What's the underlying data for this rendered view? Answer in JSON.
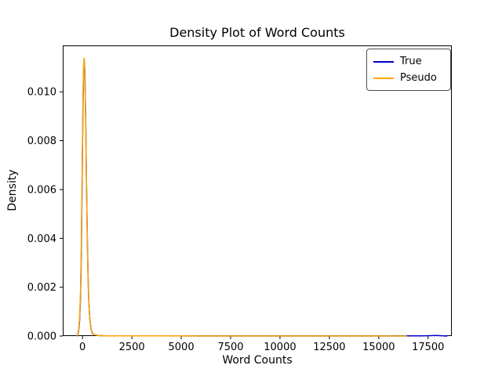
{
  "chart_data": {
    "type": "line",
    "title": "Density Plot of Word Counts",
    "xlabel": "Word Counts",
    "ylabel": "Density",
    "xlim": [
      -1000,
      18700
    ],
    "ylim": [
      0,
      0.0119
    ],
    "xticks": [
      0,
      2500,
      5000,
      7500,
      10000,
      12500,
      15000,
      17500
    ],
    "xtick_labels": [
      "0",
      "2500",
      "5000",
      "7500",
      "10000",
      "12500",
      "15000",
      "17500"
    ],
    "yticks": [
      0.0,
      0.002,
      0.004,
      0.006,
      0.008,
      0.01
    ],
    "ytick_labels": [
      "0.000",
      "0.002",
      "0.004",
      "0.006",
      "0.008",
      "0.010"
    ],
    "grid": false,
    "legend": {
      "position": "upper right",
      "entries": [
        "True",
        "Pseudo"
      ]
    },
    "series": [
      {
        "name": "True",
        "color": "#0000cd",
        "points": [
          [
            -260,
            0
          ],
          [
            -200,
            0.0002
          ],
          [
            -150,
            0.0006
          ],
          [
            -100,
            0.0016
          ],
          [
            -60,
            0.0034
          ],
          [
            -20,
            0.0062
          ],
          [
            20,
            0.0092
          ],
          [
            60,
            0.011
          ],
          [
            90,
            0.0113
          ],
          [
            120,
            0.0108
          ],
          [
            160,
            0.009
          ],
          [
            200,
            0.0064
          ],
          [
            240,
            0.0042
          ],
          [
            280,
            0.0025
          ],
          [
            320,
            0.0014
          ],
          [
            370,
            0.0007
          ],
          [
            430,
            0.0003
          ],
          [
            500,
            0.00012
          ],
          [
            600,
            5e-05
          ],
          [
            800,
            2e-05
          ],
          [
            1200,
            1e-05
          ],
          [
            2000,
            8e-06
          ],
          [
            4000,
            6e-06
          ],
          [
            8000,
            5e-06
          ],
          [
            12000,
            5e-06
          ],
          [
            15000,
            5e-06
          ],
          [
            16500,
            6e-06
          ],
          [
            17200,
            1e-05
          ],
          [
            17600,
            1.8e-05
          ],
          [
            17900,
            2.2e-05
          ],
          [
            18200,
            1.2e-05
          ],
          [
            18450,
            0
          ]
        ]
      },
      {
        "name": "Pseudo",
        "color": "#ffa500",
        "points": [
          [
            -260,
            0
          ],
          [
            -200,
            0.00025
          ],
          [
            -150,
            0.0007
          ],
          [
            -100,
            0.0018
          ],
          [
            -60,
            0.0038
          ],
          [
            -20,
            0.0066
          ],
          [
            20,
            0.0096
          ],
          [
            55,
            0.0111
          ],
          [
            80,
            0.01138
          ],
          [
            110,
            0.011
          ],
          [
            140,
            0.0098
          ],
          [
            180,
            0.0076
          ],
          [
            220,
            0.0052
          ],
          [
            260,
            0.0032
          ],
          [
            300,
            0.0018
          ],
          [
            350,
            0.0009
          ],
          [
            410,
            0.0004
          ],
          [
            480,
            0.00016
          ],
          [
            580,
            6e-05
          ],
          [
            800,
            2e-05
          ],
          [
            1200,
            1e-05
          ],
          [
            2500,
            8e-06
          ],
          [
            5000,
            6e-06
          ],
          [
            9000,
            5e-06
          ],
          [
            12000,
            5e-06
          ],
          [
            14000,
            5e-06
          ],
          [
            15500,
            4e-06
          ],
          [
            16400,
            0
          ]
        ]
      }
    ]
  }
}
